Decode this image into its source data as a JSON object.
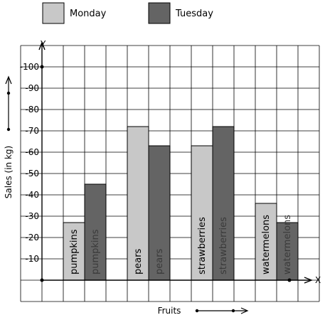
{
  "chart_data": {
    "type": "bar",
    "title": "",
    "xlabel": "Fruits",
    "ylabel": "Sales (in kg)",
    "y_axis_marker": "Y",
    "x_axis_marker": "X",
    "ylim": [
      0,
      100
    ],
    "yticks": [
      10,
      20,
      30,
      40,
      50,
      60,
      70,
      80,
      90,
      100
    ],
    "tick_prefix": "-",
    "grid": true,
    "legend_position": "top",
    "categories": [
      "pumpkins",
      "pears",
      "strawberries",
      "watermelons"
    ],
    "series": [
      {
        "name": "Monday",
        "color": "#c8c8c8",
        "label_color": "#000000",
        "values": [
          27,
          72,
          63,
          36
        ]
      },
      {
        "name": "Tuesday",
        "color": "#646464",
        "label_color": "#3a3a3a",
        "values": [
          45,
          63,
          72,
          27
        ]
      }
    ]
  }
}
